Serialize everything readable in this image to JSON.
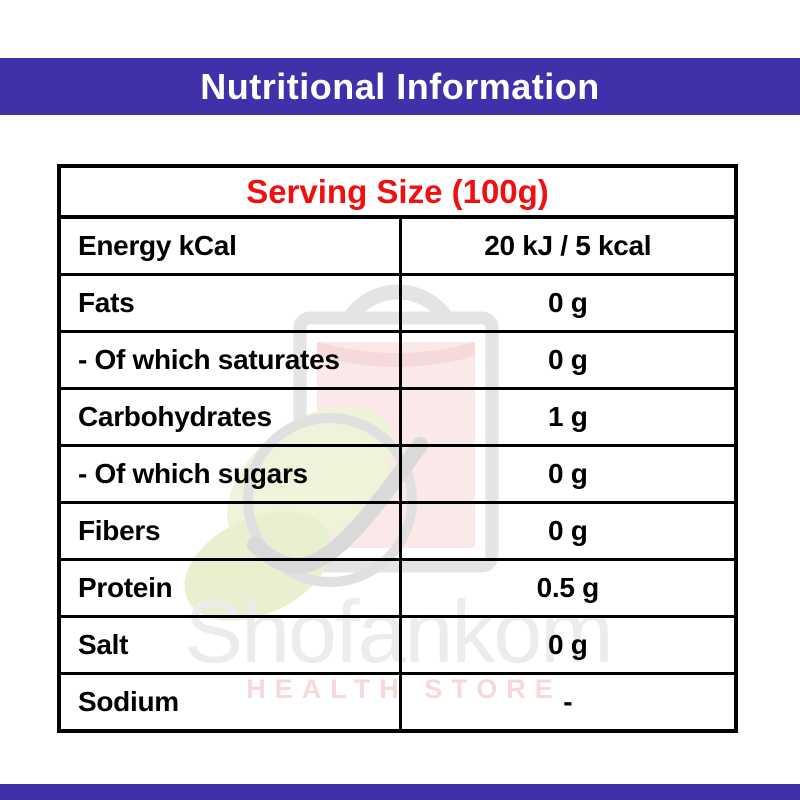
{
  "header": {
    "title": "Nutritional Information"
  },
  "table": {
    "title": "Serving Size (100g)",
    "rows": [
      {
        "label": "Energy kCal",
        "value": "20 kJ / 5 kcal"
      },
      {
        "label": "Fats",
        "value": "0 g"
      },
      {
        "label": "- Of which saturates",
        "value": "0 g"
      },
      {
        "label": "Carbohydrates",
        "value": "1 g"
      },
      {
        "label": "- Of which sugars",
        "value": "0 g"
      },
      {
        "label": "Fibers",
        "value": "0 g"
      },
      {
        "label": "Protein",
        "value": "0.5 g"
      },
      {
        "label": "Salt",
        "value": "0 g"
      },
      {
        "label": "Sodium",
        "value": "-"
      }
    ]
  },
  "watermark": {
    "brand": "Shofankom",
    "tagline": "HEALTH STORE"
  },
  "colors": {
    "band_purple": "#3F31A9",
    "title_red": "#F01010",
    "table_border": "#000000",
    "watermark_gray": "#e9e9e9",
    "watermark_pink": "#f9dcdc",
    "watermark_green": "#edf3d9"
  }
}
